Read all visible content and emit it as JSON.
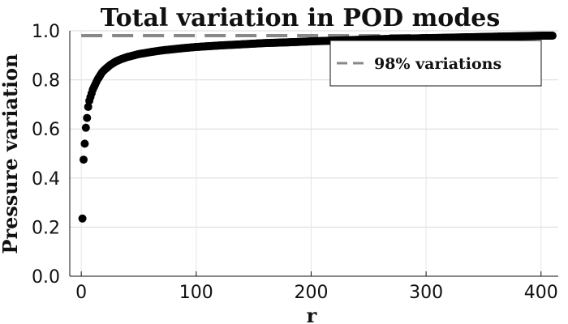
{
  "chart_data": {
    "type": "scatter",
    "title": "Total variation in POD modes",
    "xlabel": "r",
    "ylabel": "Pressure variation",
    "xlim": [
      -10,
      415
    ],
    "ylim": [
      0,
      1.0
    ],
    "xticks": [
      0,
      100,
      200,
      300,
      400
    ],
    "xtick_labels": [
      "0",
      "100",
      "200",
      "300",
      "400"
    ],
    "yticks": [
      0.0,
      0.2,
      0.4,
      0.6,
      0.8,
      1.0
    ],
    "ytick_labels": [
      "0.0",
      "0.2",
      "0.4",
      "0.6",
      "0.8",
      "1.0"
    ],
    "grid": true,
    "legend_position": "top-right",
    "threshold": {
      "name": "98% variations",
      "y": 0.98,
      "color": "#888888",
      "style": "dashed"
    },
    "series": [
      {
        "color": "#000000",
        "x": [
          1,
          2,
          3,
          4,
          5,
          6,
          7,
          8,
          9,
          10,
          12,
          14,
          16,
          18,
          20,
          25,
          30,
          35,
          40,
          50,
          60,
          70,
          80,
          90,
          100,
          120,
          140,
          160,
          180,
          200,
          220,
          240,
          260,
          280,
          300,
          320,
          340,
          360,
          380,
          400,
          410
        ],
        "y": [
          0.235,
          0.475,
          0.54,
          0.605,
          0.645,
          0.69,
          0.715,
          0.73,
          0.745,
          0.76,
          0.78,
          0.8,
          0.815,
          0.83,
          0.84,
          0.86,
          0.875,
          0.885,
          0.893,
          0.905,
          0.913,
          0.92,
          0.925,
          0.93,
          0.934,
          0.94,
          0.945,
          0.95,
          0.953,
          0.957,
          0.96,
          0.963,
          0.966,
          0.968,
          0.97,
          0.972,
          0.974,
          0.976,
          0.978,
          0.98,
          0.98
        ]
      }
    ]
  }
}
